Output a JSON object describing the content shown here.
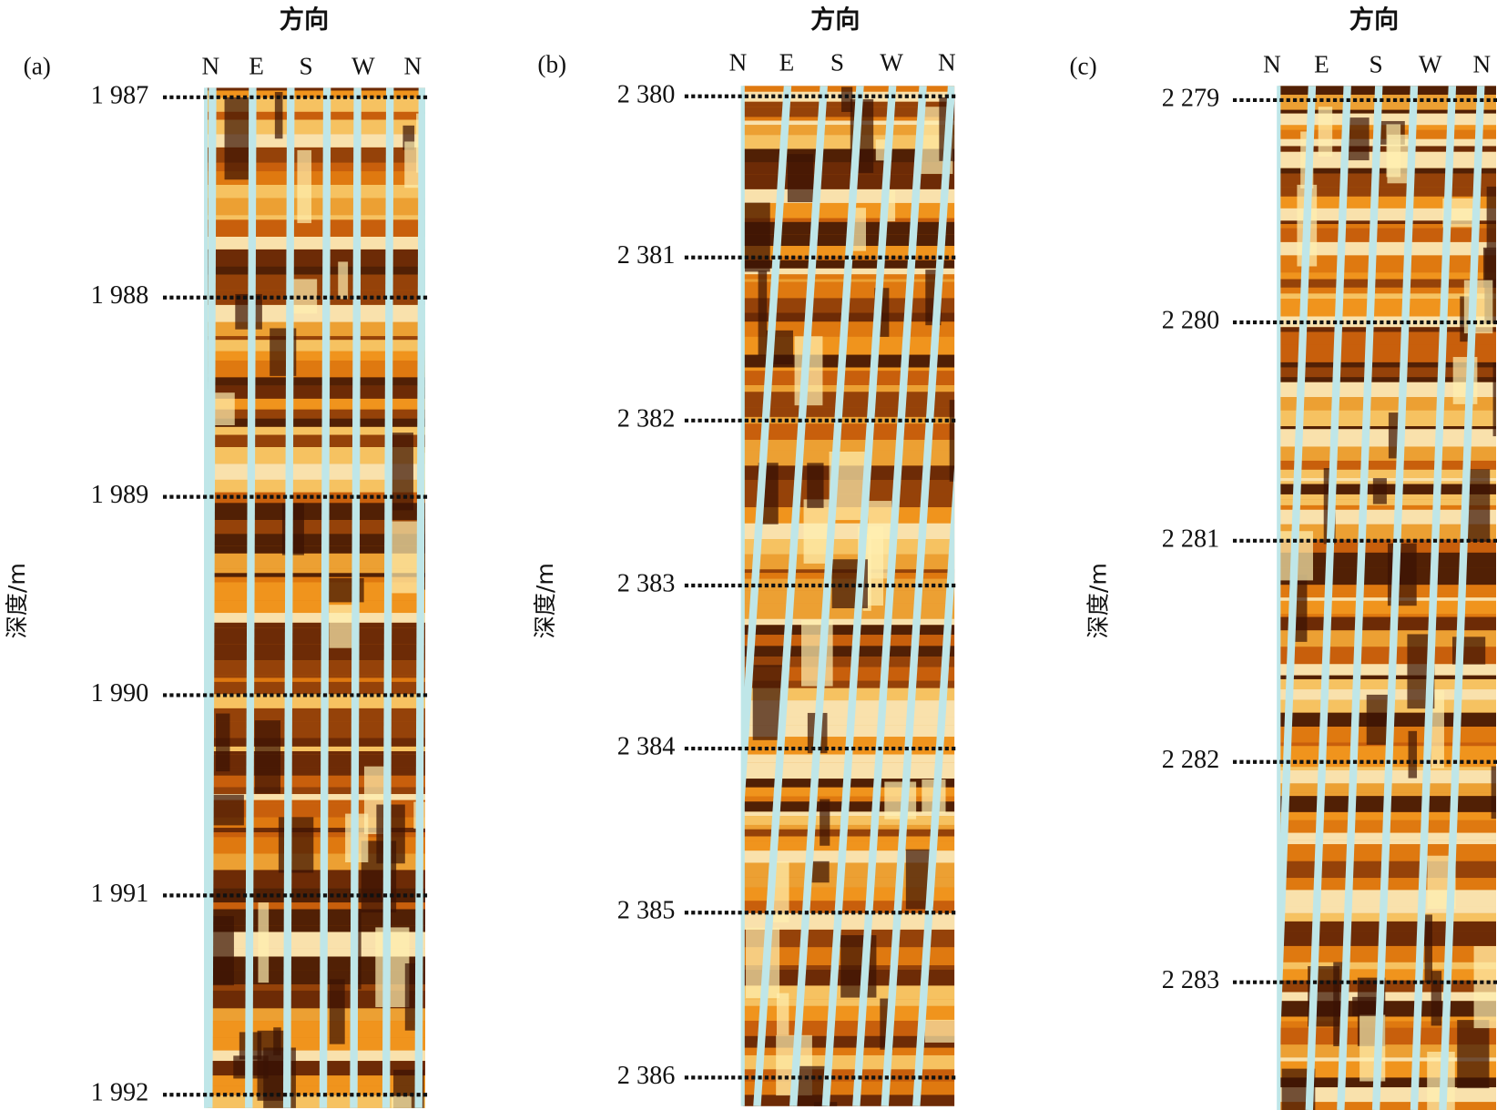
{
  "panels": [
    {
      "label": "(a)",
      "direction_title": "方向",
      "directions": [
        "N",
        "E",
        "S",
        "W",
        "N"
      ],
      "axis_label": "深度/m",
      "depths": [
        "1 987",
        "1 988",
        "1 989",
        "1 990",
        "1 991",
        "1 992"
      ]
    },
    {
      "label": "(b)",
      "direction_title": "方向",
      "directions": [
        "N",
        "E",
        "S",
        "W",
        "N"
      ],
      "axis_label": "深度/m",
      "depths": [
        "2 380",
        "2 381",
        "2 382",
        "2 383",
        "2 384",
        "2 385",
        "2 386"
      ]
    },
    {
      "label": "(c)",
      "direction_title": "方向",
      "directions": [
        "N",
        "E",
        "S",
        "W",
        "N"
      ],
      "axis_label": "深度/m",
      "depths": [
        "2 279",
        "2 280",
        "2 281",
        "2 282",
        "2 283"
      ]
    }
  ]
}
